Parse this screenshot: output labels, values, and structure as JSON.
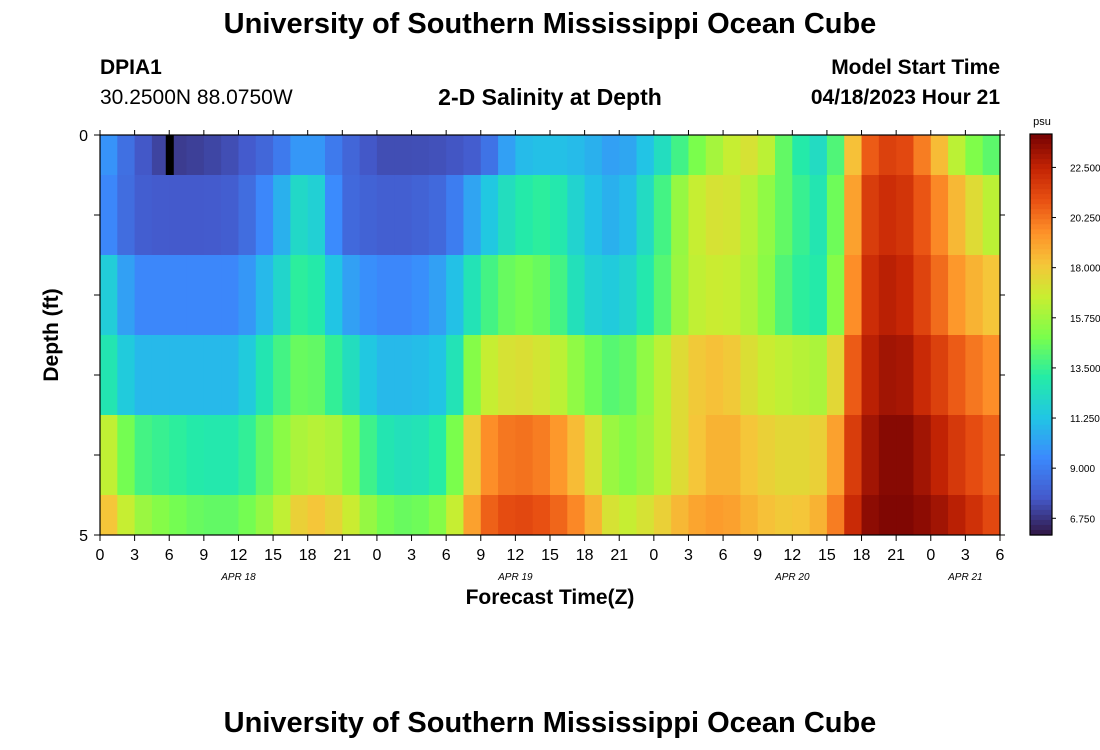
{
  "page": {
    "title": "University of Southern Mississippi Ocean Cube",
    "footer_title": "University of Southern Mississippi Ocean Cube"
  },
  "header": {
    "station": "DPIA1",
    "coords": "30.2500N  88.0750W",
    "plot_title": "2-D Salinity at Depth",
    "start_label": "Model Start Time",
    "start_value": "04/18/2023 Hour 21"
  },
  "chart_data": {
    "type": "heatmap",
    "title": "2-D Salinity at Depth",
    "xlabel": "Forecast Time(Z)",
    "ylabel": "Depth (ft)",
    "colorbar_unit": "psu",
    "colorbar_ticks": [
      "22.500",
      "20.250",
      "18.000",
      "15.750",
      "13.500",
      "11.250",
      "9.000",
      "6.750"
    ],
    "colorbar_range": [
      6.0,
      24.0
    ],
    "x_tick_labels": [
      "0",
      "3",
      "6",
      "9",
      "12",
      "15",
      "18",
      "21",
      "0",
      "3",
      "6",
      "9",
      "12",
      "15",
      "18",
      "21",
      "0",
      "3",
      "6",
      "9",
      "12",
      "15",
      "18",
      "21",
      "0",
      "3",
      "6"
    ],
    "x_range_hours": [
      0,
      78
    ],
    "date_labels": [
      {
        "hour": 12,
        "label": "APR 18"
      },
      {
        "hour": 36,
        "label": "APR 19"
      },
      {
        "hour": 60,
        "label": "APR 20"
      },
      {
        "hour": 75,
        "label": "APR 21"
      }
    ],
    "y_tick_labels": [
      "0",
      "5"
    ],
    "y_range": [
      0,
      5
    ],
    "depth_bands": [
      0,
      1,
      2,
      3,
      4,
      5
    ],
    "hours": [
      0,
      3,
      6,
      9,
      12,
      15,
      18,
      21,
      24,
      27,
      30,
      33,
      36,
      39,
      42,
      45,
      48,
      51,
      54,
      57,
      60,
      63,
      66,
      69,
      72,
      75,
      78
    ],
    "salinity_rows": [
      [
        10.5,
        8.0,
        7.0,
        7.2,
        7.6,
        8.5,
        10.5,
        8.5,
        7.5,
        7.5,
        7.6,
        8.0,
        11.0,
        11.3,
        11.0,
        10.0,
        11.8,
        14.5,
        16.5,
        17.5,
        13.5,
        12.0,
        20.5,
        22.0,
        19.5,
        15.5,
        14.0
      ],
      [
        10.0,
        8.0,
        7.8,
        7.8,
        8.0,
        10.0,
        13.0,
        8.5,
        8.0,
        8.0,
        8.5,
        11.0,
        13.0,
        13.5,
        11.5,
        10.5,
        13.0,
        16.5,
        17.5,
        16.0,
        14.0,
        12.5,
        21.5,
        22.5,
        20.5,
        18.0,
        16.0
      ],
      [
        12.5,
        9.5,
        9.5,
        9.5,
        9.5,
        11.5,
        14.0,
        10.5,
        9.5,
        9.5,
        10.5,
        13.5,
        15.0,
        14.5,
        12.0,
        11.5,
        13.5,
        16.5,
        17.0,
        16.0,
        13.5,
        13.0,
        22.0,
        23.0,
        21.0,
        19.0,
        18.0
      ],
      [
        13.5,
        11.0,
        11.0,
        11.0,
        11.0,
        13.5,
        15.0,
        13.0,
        11.0,
        11.0,
        11.5,
        16.5,
        17.5,
        17.0,
        15.0,
        14.0,
        16.0,
        18.0,
        18.5,
        17.0,
        16.5,
        16.0,
        22.5,
        23.5,
        22.0,
        20.5,
        19.5
      ],
      [
        17.5,
        14.0,
        13.5,
        13.0,
        13.0,
        15.0,
        16.5,
        16.0,
        13.0,
        12.5,
        13.5,
        19.5,
        20.5,
        20.0,
        18.0,
        15.0,
        16.0,
        18.0,
        19.0,
        18.0,
        17.5,
        18.0,
        23.0,
        24.0,
        23.0,
        21.5,
        20.5
      ],
      [
        19.0,
        16.0,
        15.0,
        14.5,
        14.5,
        16.0,
        18.5,
        17.5,
        15.0,
        14.5,
        15.5,
        20.5,
        21.5,
        21.0,
        19.5,
        16.5,
        17.5,
        19.0,
        19.5,
        18.5,
        18.0,
        19.0,
        23.5,
        24.0,
        23.5,
        22.5,
        21.0
      ]
    ]
  }
}
